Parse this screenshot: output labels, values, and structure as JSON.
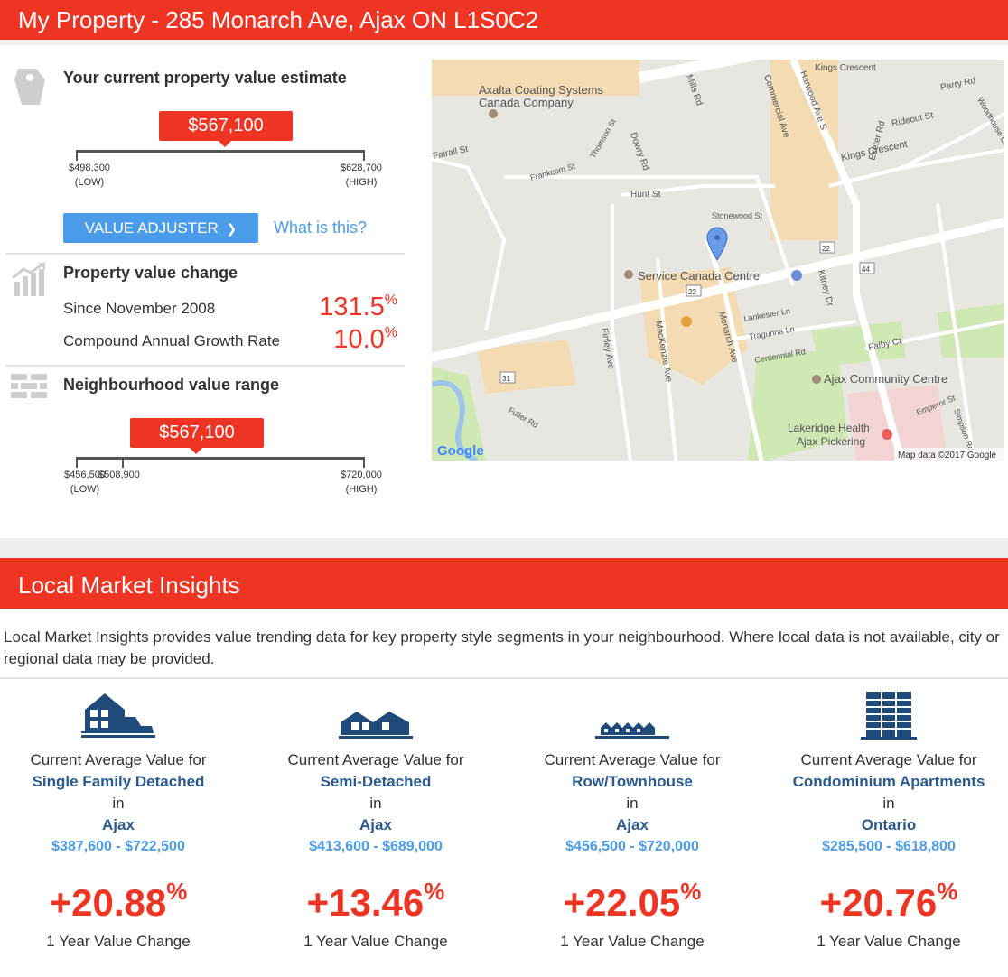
{
  "header": {
    "title": "My Property - 285 Monarch Ave, Ajax ON L1S0C2"
  },
  "estimate": {
    "title": "Your current property value estimate",
    "value": "$567,100",
    "low": "$498,300",
    "low_tag": "(LOW)",
    "high": "$628,700",
    "high_tag": "(HIGH)",
    "position": 0.52,
    "adjuster_label": "VALUE ADJUSTER",
    "adjuster_chevron": "❯",
    "what_is_this": "What is this?"
  },
  "change": {
    "title": "Property value change",
    "since_label": "Since November 2008",
    "since_value": "131.5",
    "cagr_label": "Compound Annual Growth Rate",
    "cagr_value": "10.0",
    "percent": "%"
  },
  "neighbourhood": {
    "title": "Neighbourhood value range",
    "value": "$567,100",
    "low": "$456,500",
    "low_tag": "(LOW)",
    "mid": "$508,900",
    "high": "$720,000",
    "high_tag": "(HIGH)",
    "position": 0.42,
    "mid_position": 0.16
  },
  "map": {
    "labels": [
      "Axalta Coating Systems",
      "Canada Company",
      "Service Canada Centre",
      "Ajax Community Centre",
      "Lakeridge Health",
      "Ajax Pickering",
      "Hunt St",
      "Stonewood St",
      "Frankcom St",
      "Thomson St",
      "Dowry Rd",
      "Mills Rd",
      "Commercial Ave",
      "Harwood Ave S",
      "Kings Crescent",
      "Rideout St",
      "Parry Rd",
      "Exeter Rd",
      "Woodhouse Cres",
      "Fairall St",
      "Monarch Ave",
      "MacKenzie Ave",
      "Finley Ave",
      "Fuller Rd",
      "Kitney Dr",
      "Lankester Ln",
      "Tragunna Ln",
      "Centennial Rd",
      "Falby Ct",
      "Emperor St",
      "Simpson Rd",
      "Kings Crescent",
      "22",
      "22",
      "44",
      "31"
    ],
    "brand": "Google",
    "attribution": "Map data ©2017 Google"
  },
  "insights": {
    "title": "Local Market Insights",
    "intro": "Local Market Insights provides value trending data for key property style segments in your neighbourhood. Where local data is not available, city or regional data may be provided.",
    "cards": [
      {
        "icon": "single-family-house-icon",
        "line1": "Current Average Value for",
        "segment": "Single Family Detached",
        "in": "in",
        "location": "Ajax",
        "range": "$387,600 - $722,500",
        "change": "+20.88",
        "percent": "%",
        "change_label": "1 Year Value Change"
      },
      {
        "icon": "semi-detached-house-icon",
        "line1": "Current Average Value for",
        "segment": "Semi-Detached",
        "in": "in",
        "location": "Ajax",
        "range": "$413,600 - $689,000",
        "change": "+13.46",
        "percent": "%",
        "change_label": "1 Year Value Change"
      },
      {
        "icon": "townhouse-icon",
        "line1": "Current Average Value for",
        "segment": "Row/Townhouse",
        "in": "in",
        "location": "Ajax",
        "range": "$456,500 - $720,000",
        "change": "+22.05",
        "percent": "%",
        "change_label": "1 Year Value Change"
      },
      {
        "icon": "condo-building-icon",
        "line1": "Current Average Value for",
        "segment": "Condominium Apartments",
        "in": "in",
        "location": "Ontario",
        "range": "$285,500 - $618,800",
        "change": "+20.76",
        "percent": "%",
        "change_label": "1 Year Value Change"
      }
    ]
  },
  "colors": {
    "brand_red": "#ee3524",
    "link_blue": "#4a9be8",
    "segment_navy": "#2a5b8f",
    "icon_navy": "#1f4a7a"
  }
}
